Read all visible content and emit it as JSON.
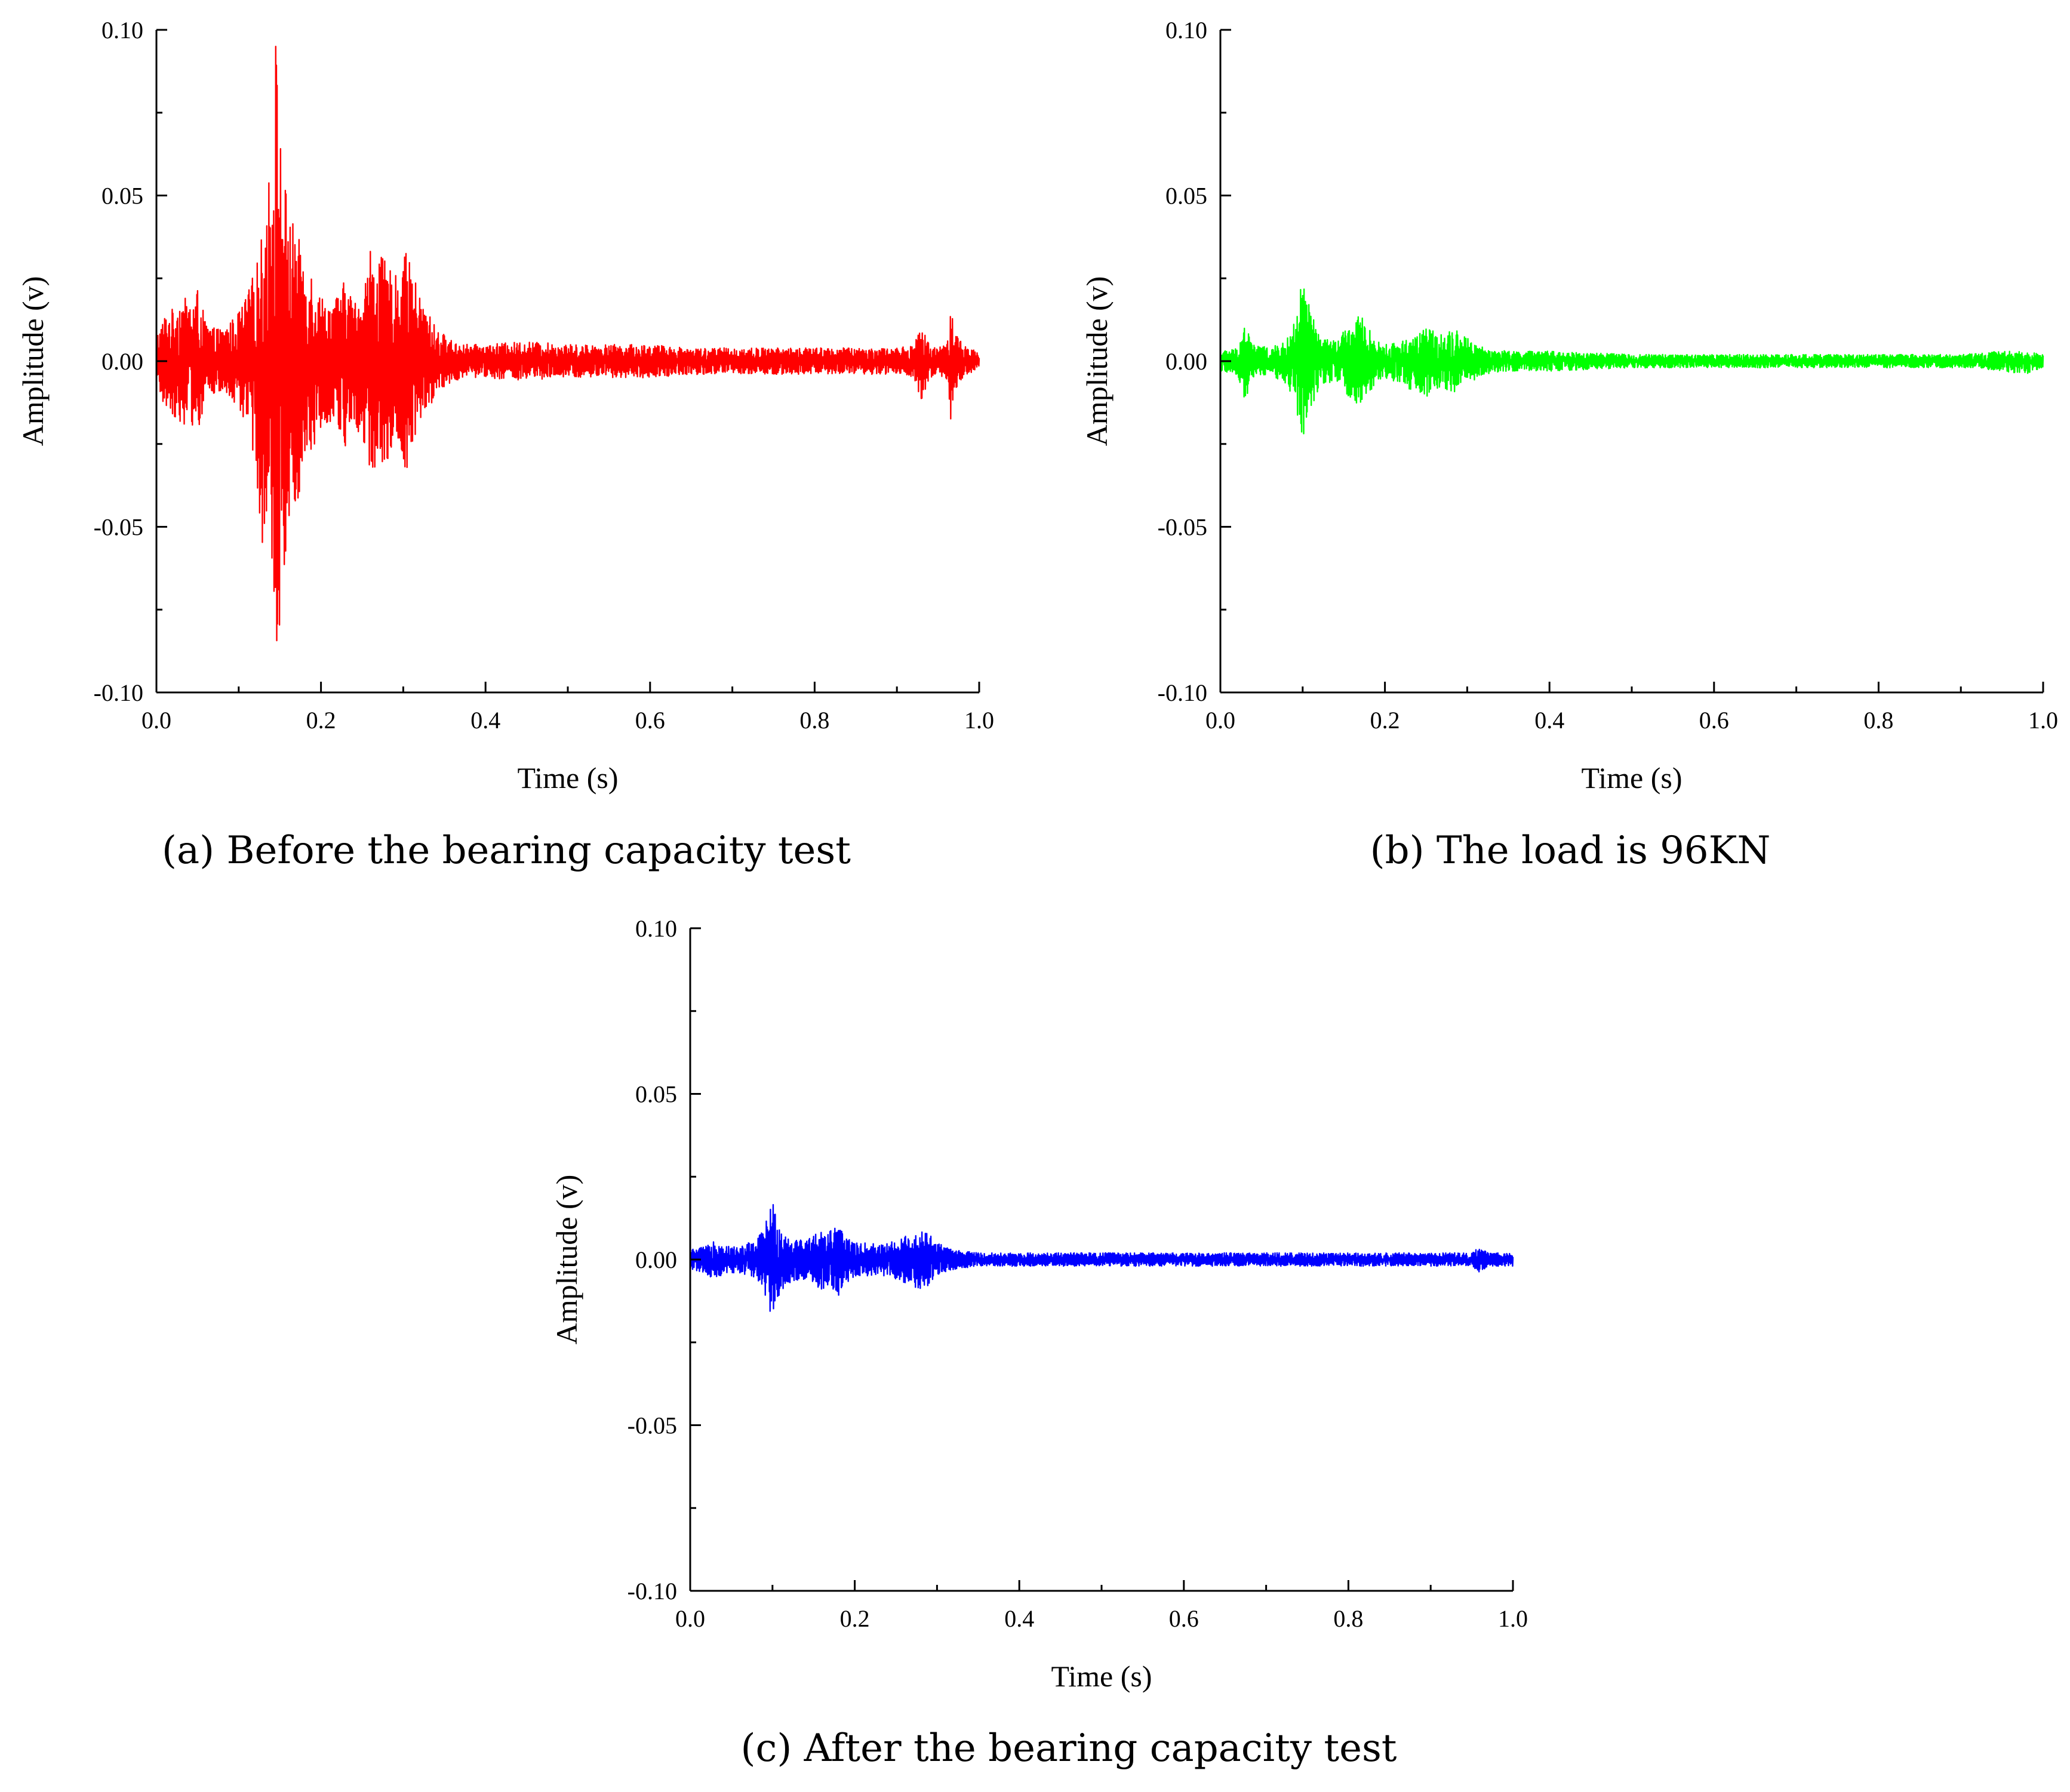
{
  "chart_data": [
    {
      "type": "line",
      "caption": "(a) Before the bearing capacity test",
      "xlabel": "Time (s)",
      "ylabel": "Amplitude (v)",
      "xlim": [
        0.0,
        1.0
      ],
      "ylim": [
        -0.1,
        0.1
      ],
      "xticks": [
        "0.0",
        "0.2",
        "0.4",
        "0.6",
        "0.8",
        "1.0"
      ],
      "yticks": [
        "0.10",
        "0.05",
        "0.00",
        "-0.05",
        "-0.10"
      ],
      "color": "#ff0000",
      "series": [
        {
          "envelope": {
            "t": [
              0.0,
              0.01,
              0.02,
              0.03,
              0.04,
              0.05,
              0.06,
              0.07,
              0.08,
              0.09,
              0.1,
              0.11,
              0.12,
              0.13,
              0.14,
              0.145,
              0.15,
              0.16,
              0.17,
              0.18,
              0.19,
              0.2,
              0.21,
              0.22,
              0.23,
              0.24,
              0.25,
              0.26,
              0.27,
              0.28,
              0.29,
              0.3,
              0.31,
              0.32,
              0.33,
              0.34,
              0.35,
              0.36,
              0.38,
              0.4,
              0.45,
              0.5,
              0.55,
              0.6,
              0.65,
              0.7,
              0.75,
              0.8,
              0.85,
              0.9,
              0.92,
              0.93,
              0.94,
              0.95,
              0.96,
              0.965,
              0.97,
              0.98,
              0.99,
              1.0
            ],
            "max": [
              0.008,
              0.014,
              0.016,
              0.02,
              0.018,
              0.022,
              0.012,
              0.01,
              0.01,
              0.012,
              0.015,
              0.02,
              0.028,
              0.04,
              0.065,
              0.1,
              0.072,
              0.045,
              0.04,
              0.03,
              0.028,
              0.02,
              0.018,
              0.02,
              0.025,
              0.018,
              0.02,
              0.035,
              0.032,
              0.03,
              0.025,
              0.035,
              0.028,
              0.02,
              0.015,
              0.01,
              0.008,
              0.006,
              0.005,
              0.005,
              0.006,
              0.005,
              0.005,
              0.005,
              0.004,
              0.004,
              0.004,
              0.004,
              0.004,
              0.004,
              0.005,
              0.01,
              0.005,
              0.004,
              0.006,
              0.018,
              0.01,
              0.005,
              0.004,
              0.002
            ],
            "min": [
              -0.008,
              -0.014,
              -0.016,
              -0.02,
              -0.018,
              -0.022,
              -0.012,
              -0.01,
              -0.01,
              -0.012,
              -0.015,
              -0.02,
              -0.03,
              -0.06,
              -0.07,
              -0.09,
              -0.08,
              -0.05,
              -0.045,
              -0.03,
              -0.028,
              -0.02,
              -0.018,
              -0.02,
              -0.028,
              -0.018,
              -0.025,
              -0.035,
              -0.033,
              -0.03,
              -0.025,
              -0.036,
              -0.028,
              -0.02,
              -0.015,
              -0.01,
              -0.008,
              -0.006,
              -0.005,
              -0.005,
              -0.006,
              -0.005,
              -0.005,
              -0.005,
              -0.004,
              -0.004,
              -0.004,
              -0.004,
              -0.004,
              -0.004,
              -0.005,
              -0.012,
              -0.005,
              -0.004,
              -0.006,
              -0.019,
              -0.01,
              -0.005,
              -0.004,
              -0.002
            ]
          }
        }
      ]
    },
    {
      "type": "line",
      "caption": "(b) The load is 96KN",
      "xlabel": "Time (s)",
      "ylabel": "Amplitude (v)",
      "xlim": [
        0.0,
        1.0
      ],
      "ylim": [
        -0.1,
        0.1
      ],
      "xticks": [
        "0.0",
        "0.2",
        "0.4",
        "0.6",
        "0.8",
        "1.0"
      ],
      "yticks": [
        "0.10",
        "0.05",
        "0.00",
        "-0.05",
        "-0.10"
      ],
      "color": "#00ff00",
      "series": [
        {
          "envelope": {
            "t": [
              0.0,
              0.02,
              0.03,
              0.04,
              0.06,
              0.08,
              0.09,
              0.1,
              0.11,
              0.12,
              0.14,
              0.16,
              0.17,
              0.18,
              0.19,
              0.2,
              0.22,
              0.24,
              0.25,
              0.26,
              0.27,
              0.28,
              0.29,
              0.3,
              0.32,
              0.35,
              0.4,
              0.5,
              0.6,
              0.7,
              0.8,
              0.9,
              0.95,
              0.98,
              1.0
            ],
            "max": [
              0.003,
              0.004,
              0.012,
              0.005,
              0.004,
              0.006,
              0.012,
              0.025,
              0.015,
              0.008,
              0.006,
              0.012,
              0.014,
              0.01,
              0.006,
              0.005,
              0.006,
              0.009,
              0.01,
              0.009,
              0.008,
              0.01,
              0.009,
              0.007,
              0.004,
              0.003,
              0.003,
              0.002,
              0.002,
              0.002,
              0.002,
              0.002,
              0.003,
              0.003,
              0.002
            ],
            "min": [
              -0.003,
              -0.004,
              -0.012,
              -0.005,
              -0.004,
              -0.007,
              -0.012,
              -0.024,
              -0.015,
              -0.008,
              -0.006,
              -0.012,
              -0.014,
              -0.01,
              -0.006,
              -0.005,
              -0.007,
              -0.01,
              -0.011,
              -0.009,
              -0.008,
              -0.011,
              -0.009,
              -0.007,
              -0.004,
              -0.003,
              -0.003,
              -0.002,
              -0.002,
              -0.002,
              -0.002,
              -0.002,
              -0.003,
              -0.004,
              -0.002
            ]
          }
        }
      ]
    },
    {
      "type": "line",
      "caption": "(c) After the bearing capacity test",
      "xlabel": "Time (s)",
      "ylabel": "Amplitude (v)",
      "xlim": [
        0.0,
        1.0
      ],
      "ylim": [
        -0.1,
        0.1
      ],
      "xticks": [
        "0.0",
        "0.2",
        "0.4",
        "0.6",
        "0.8",
        "1.0"
      ],
      "yticks": [
        "0.10",
        "0.05",
        "0.00",
        "-0.05",
        "-0.10"
      ],
      "color": "#0000ff",
      "series": [
        {
          "envelope": {
            "t": [
              0.0,
              0.02,
              0.03,
              0.04,
              0.06,
              0.08,
              0.09,
              0.1,
              0.11,
              0.12,
              0.14,
              0.16,
              0.18,
              0.2,
              0.22,
              0.24,
              0.26,
              0.27,
              0.28,
              0.29,
              0.3,
              0.32,
              0.35,
              0.4,
              0.5,
              0.6,
              0.7,
              0.8,
              0.9,
              0.95,
              0.96,
              0.97,
              0.98,
              1.0
            ],
            "max": [
              0.003,
              0.004,
              0.007,
              0.004,
              0.004,
              0.006,
              0.01,
              0.018,
              0.01,
              0.007,
              0.006,
              0.009,
              0.01,
              0.005,
              0.005,
              0.005,
              0.007,
              0.008,
              0.009,
              0.008,
              0.005,
              0.003,
              0.002,
              0.002,
              0.002,
              0.002,
              0.002,
              0.002,
              0.002,
              0.002,
              0.004,
              0.002,
              0.002,
              0.002
            ],
            "min": [
              -0.003,
              -0.004,
              -0.009,
              -0.004,
              -0.004,
              -0.006,
              -0.01,
              -0.019,
              -0.01,
              -0.007,
              -0.006,
              -0.009,
              -0.011,
              -0.005,
              -0.005,
              -0.005,
              -0.007,
              -0.008,
              -0.009,
              -0.008,
              -0.005,
              -0.003,
              -0.002,
              -0.002,
              -0.002,
              -0.002,
              -0.002,
              -0.002,
              -0.002,
              -0.002,
              -0.004,
              -0.002,
              -0.002,
              -0.002
            ]
          }
        }
      ]
    }
  ]
}
